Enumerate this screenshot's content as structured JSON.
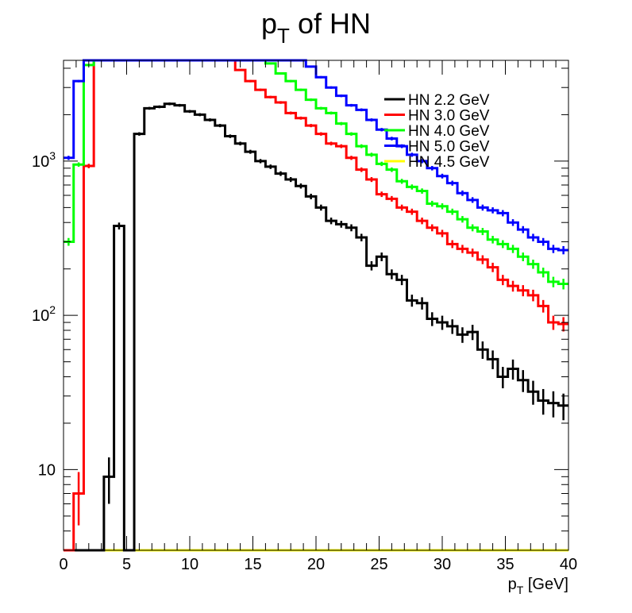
{
  "chart_data": {
    "type": "line",
    "title_main": "p",
    "title_sub": "T",
    "title_rest": " of HN",
    "xlabel_main": "p",
    "xlabel_sub": "T",
    "xlabel_rest": " [GeV]",
    "ylabel": "",
    "xlim": [
      0,
      40
    ],
    "ylim": [
      3,
      4500
    ],
    "yscale": "log",
    "xticks": [
      0,
      5,
      10,
      15,
      20,
      25,
      30,
      35,
      40
    ],
    "yticks": [
      {
        "value": 10,
        "base": "10",
        "exp": ""
      },
      {
        "value": 100,
        "base": "10",
        "exp": "2"
      },
      {
        "value": 1000,
        "base": "10",
        "exp": "3"
      }
    ],
    "bin_width": 0.8,
    "legend_position": "top-right",
    "series": [
      {
        "name": "HN 2.2 GeV",
        "color": "#000000",
        "values": [
          0,
          0,
          0,
          0,
          9,
          380,
          0,
          1500,
          2200,
          2250,
          2350,
          2300,
          2100,
          2000,
          1850,
          1700,
          1450,
          1300,
          1150,
          1000,
          920,
          830,
          760,
          690,
          590,
          500,
          410,
          390,
          370,
          320,
          210,
          240,
          185,
          170,
          125,
          120,
          95,
          90,
          85,
          75,
          78,
          60,
          52,
          40,
          45,
          38,
          32,
          28,
          27,
          26
        ]
      },
      {
        "name": "HN 3.0 GeV",
        "color": "#ff0000",
        "values": [
          0,
          7,
          930,
          4500,
          4500,
          4500,
          4500,
          4500,
          4500,
          4500,
          4500,
          4500,
          4500,
          4500,
          4500,
          4500,
          4500,
          3900,
          3300,
          2900,
          2600,
          2400,
          2050,
          1900,
          1700,
          1500,
          1300,
          1250,
          1050,
          880,
          760,
          610,
          570,
          500,
          470,
          410,
          370,
          340,
          290,
          270,
          255,
          230,
          205,
          170,
          155,
          145,
          135,
          115,
          90,
          88
        ]
      },
      {
        "name": "HN 4.0 GeV",
        "color": "#00ff00",
        "values": [
          300,
          950,
          4200,
          4500,
          4500,
          4500,
          4500,
          4500,
          4500,
          4500,
          4500,
          4500,
          4500,
          4500,
          4500,
          4500,
          4500,
          4500,
          4500,
          4500,
          4300,
          3700,
          3300,
          2900,
          2500,
          2200,
          2050,
          1750,
          1500,
          1250,
          1100,
          960,
          880,
          740,
          680,
          640,
          530,
          510,
          470,
          420,
          370,
          350,
          310,
          290,
          270,
          240,
          215,
          190,
          165,
          160
        ]
      },
      {
        "name": "HN 5.0 GeV",
        "color": "#0000ff",
        "values": [
          1050,
          3300,
          4500,
          4500,
          4500,
          4500,
          4500,
          4500,
          4500,
          4500,
          4500,
          4500,
          4500,
          4500,
          4500,
          4500,
          4500,
          4500,
          4500,
          4500,
          4500,
          4500,
          4500,
          4500,
          4100,
          3500,
          3000,
          2650,
          2300,
          2150,
          1850,
          1600,
          1400,
          1250,
          1100,
          1000,
          900,
          800,
          720,
          620,
          560,
          500,
          480,
          460,
          400,
          360,
          320,
          300,
          270,
          265
        ]
      },
      {
        "name": "HN 4.5 GeV",
        "color": "#ffff00",
        "values": [
          0,
          0,
          0,
          0,
          0,
          0,
          0,
          0,
          0,
          0,
          0,
          0,
          0,
          0,
          0,
          0,
          0,
          0,
          0,
          0,
          0,
          0,
          0,
          0,
          0,
          0,
          0,
          0,
          0,
          0,
          0,
          0,
          0,
          0,
          0,
          0,
          0,
          0,
          0,
          0,
          0,
          0,
          0,
          0,
          0,
          0,
          0,
          0,
          0,
          0
        ]
      }
    ]
  }
}
